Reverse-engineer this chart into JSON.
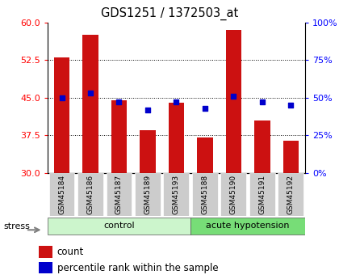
{
  "title": "GDS1251 / 1372503_at",
  "samples": [
    "GSM45184",
    "GSM45186",
    "GSM45187",
    "GSM45189",
    "GSM45193",
    "GSM45188",
    "GSM45190",
    "GSM45191",
    "GSM45192"
  ],
  "counts": [
    53.0,
    57.5,
    44.5,
    38.5,
    44.0,
    37.0,
    58.5,
    40.5,
    36.5
  ],
  "percentiles": [
    50,
    53,
    47,
    42,
    47,
    43,
    51,
    47,
    45
  ],
  "ylim_left": [
    30,
    60
  ],
  "ylim_right": [
    0,
    100
  ],
  "yticks_left": [
    30,
    37.5,
    45,
    52.5,
    60
  ],
  "yticks_right": [
    0,
    25,
    50,
    75,
    100
  ],
  "groups": [
    {
      "label": "control",
      "indices": [
        0,
        1,
        2,
        3,
        4
      ],
      "color": "#ccf5cc"
    },
    {
      "label": "acute hypotension",
      "indices": [
        5,
        6,
        7,
        8
      ],
      "color": "#77dd77"
    }
  ],
  "stress_label": "stress",
  "bar_color": "#cc1111",
  "dot_color": "#0000cc",
  "sample_bg": "#cccccc",
  "legend_count_label": "count",
  "legend_pct_label": "percentile rank within the sample"
}
